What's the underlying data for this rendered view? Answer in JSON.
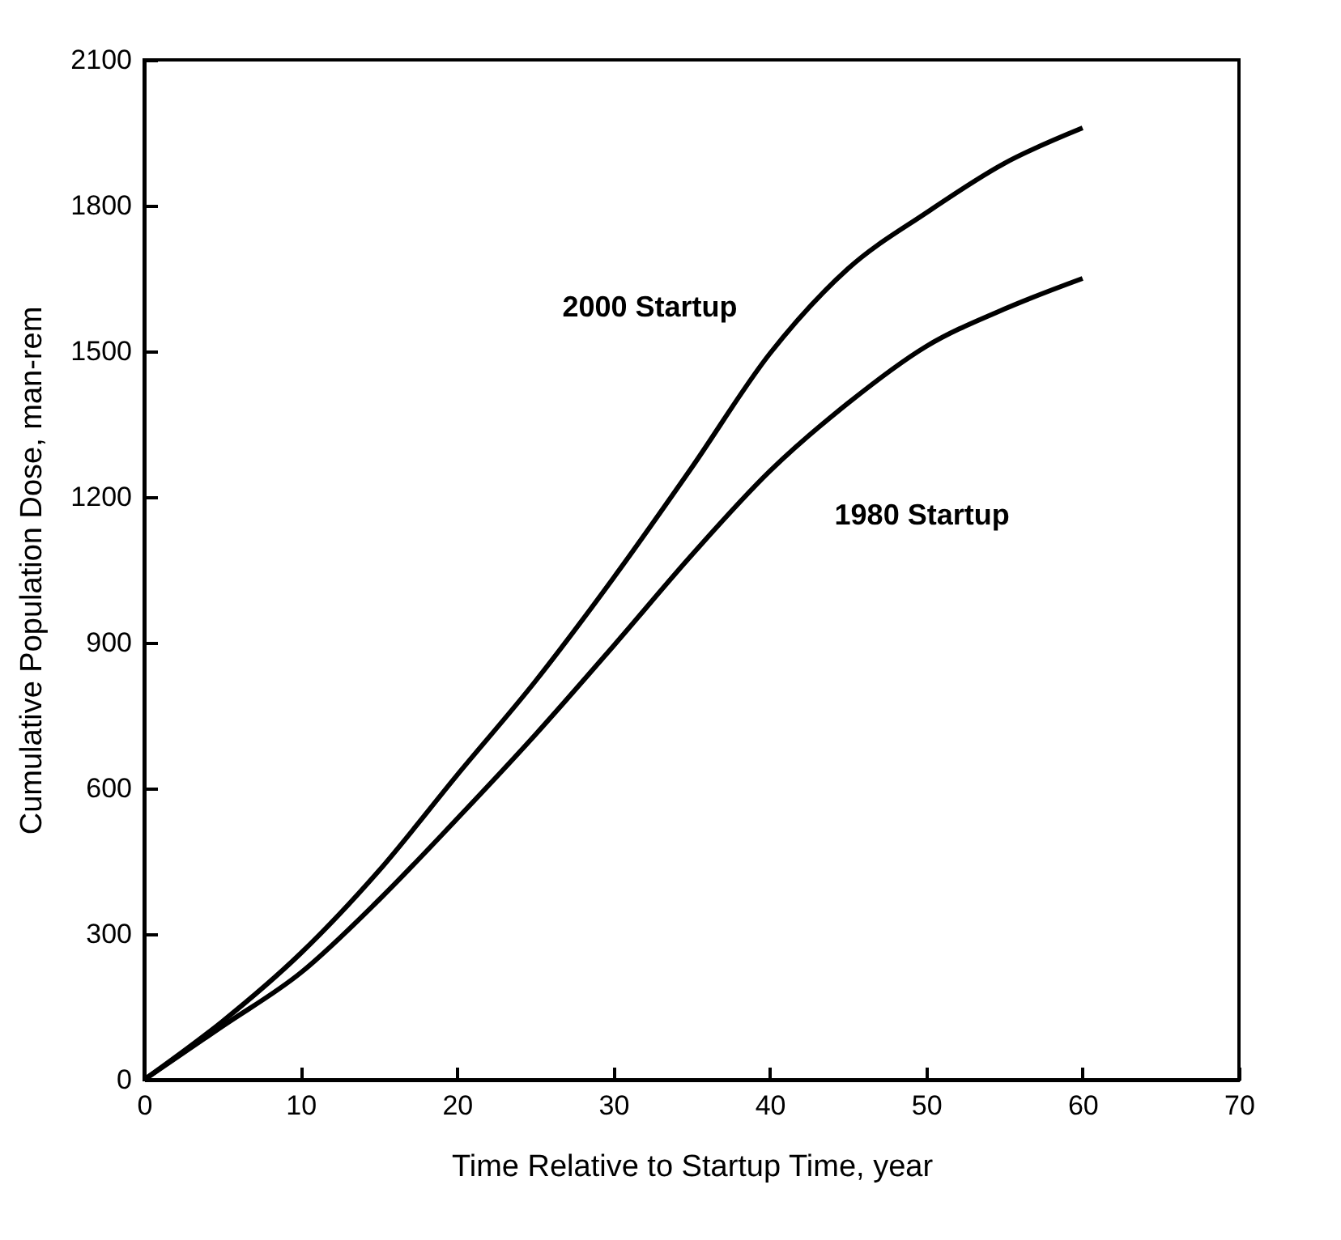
{
  "chart_data": {
    "type": "line",
    "xlabel": "Time Relative to Startup Time, year",
    "ylabel": "Cumulative Population Dose, man-rem",
    "xlim": [
      0,
      70
    ],
    "ylim": [
      0,
      2100
    ],
    "xticks": [
      0,
      10,
      20,
      30,
      40,
      50,
      60,
      70
    ],
    "yticks": [
      0,
      300,
      600,
      900,
      1200,
      1500,
      1800,
      2100
    ],
    "grid": false,
    "legend": false,
    "marker": "none",
    "line_style": "solid",
    "x": [
      0,
      5,
      10,
      15,
      20,
      25,
      30,
      35,
      40,
      45,
      50,
      55,
      60
    ],
    "series": [
      {
        "name": "2000 Startup",
        "color": "#000000",
        "values": [
          0,
          120,
          260,
          430,
          627,
          820,
          1033,
          1260,
          1495,
          1670,
          1785,
          1887,
          1960
        ]
      },
      {
        "name": "1980 Startup",
        "color": "#000000",
        "values": [
          0,
          110,
          220,
          370,
          537,
          710,
          893,
          1080,
          1253,
          1393,
          1510,
          1587,
          1650
        ]
      }
    ]
  }
}
